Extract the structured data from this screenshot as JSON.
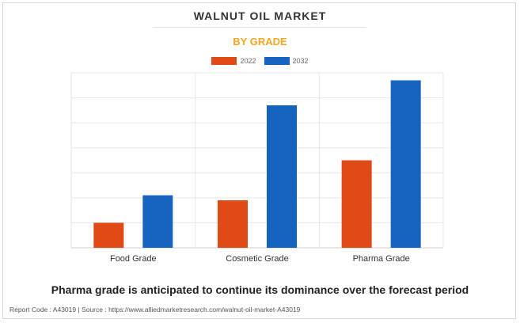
{
  "header": {
    "title": "WALNUT OIL MARKET",
    "subtitle": "BY GRADE"
  },
  "legend": {
    "items": [
      {
        "label": "2022",
        "color": "#e04a16"
      },
      {
        "label": "2032",
        "color": "#1565c0"
      }
    ]
  },
  "chart_data": {
    "type": "bar",
    "title": "WALNUT OIL MARKET",
    "subtitle": "BY GRADE",
    "categories": [
      "Food Grade",
      "Cosmetic Grade",
      "Pharma Grade"
    ],
    "series": [
      {
        "name": "2022",
        "values": [
          1.0,
          1.9,
          3.5
        ],
        "color": "#e04a16"
      },
      {
        "name": "2032",
        "values": [
          2.1,
          5.7,
          6.7
        ],
        "color": "#1565c0"
      }
    ],
    "ylim": [
      0,
      7.0
    ],
    "grid": true,
    "legend_position": "top-center",
    "xlabel": "",
    "ylabel": ""
  },
  "footnote": "Pharma grade is anticipated to continue its dominance over the forecast period",
  "footer": "Report Code : A43019  |  Source : https://www.alliedmarketresearch.com/walnut-oil-market-A43019"
}
